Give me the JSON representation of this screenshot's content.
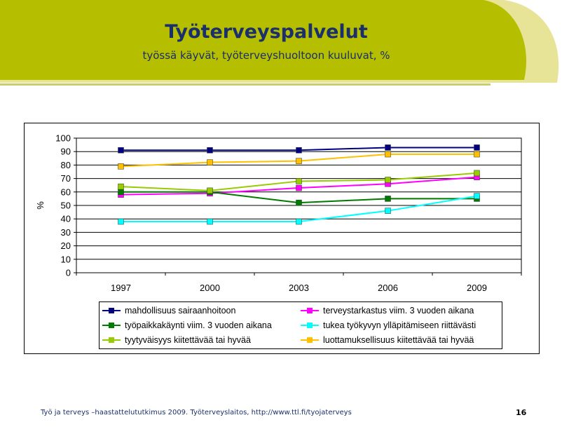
{
  "slide": {
    "title": "Työterveyspalvelut",
    "subtitle": "työssä käyvät, työterveyshuoltoon kuuluvat, %",
    "footer": "Työ ja terveys –haastattelututkimus 2009. Työterveyslaitos, http://www.ttl.fi/tyojaterveys",
    "page_number": "16",
    "colors": {
      "banner": "#b5bf00",
      "banner_light": "#e8e497",
      "title": "#1a2f6b"
    }
  },
  "chart_data": {
    "type": "line",
    "title": "",
    "xlabel": "",
    "ylabel": "%",
    "categories": [
      "1997",
      "2000",
      "2003",
      "2006",
      "2009"
    ],
    "ylim": [
      0,
      100
    ],
    "ytick_step": 10,
    "grid": "horizontal",
    "legend_position": "bottom",
    "series": [
      {
        "name": "mahdollisuus sairaanhoitoon",
        "color": "#000080",
        "values": [
          91,
          91,
          91,
          93,
          93
        ]
      },
      {
        "name": "terveystarkastus viim. 3 vuoden aikana",
        "color": "#ff00ff",
        "values": [
          58,
          59,
          63,
          66,
          71
        ]
      },
      {
        "name": "työpaikkakäynti viim. 3 vuoden aikana",
        "color": "#007a00",
        "values": [
          60,
          60,
          52,
          55,
          55
        ]
      },
      {
        "name": "tukea työkyvyn ylläpitämiseen riittävästi",
        "color": "#00ffff",
        "values": [
          38,
          38,
          38,
          46,
          57
        ]
      },
      {
        "name": "tyytyväisyys kiitettävää tai hyvää",
        "color": "#99cc00",
        "values": [
          64,
          61,
          68,
          69,
          74
        ]
      },
      {
        "name": "luottamuksellisuus kiitettävää tai hyvää",
        "color": "#ffc000",
        "values": [
          79,
          82,
          83,
          88,
          88
        ]
      }
    ]
  }
}
